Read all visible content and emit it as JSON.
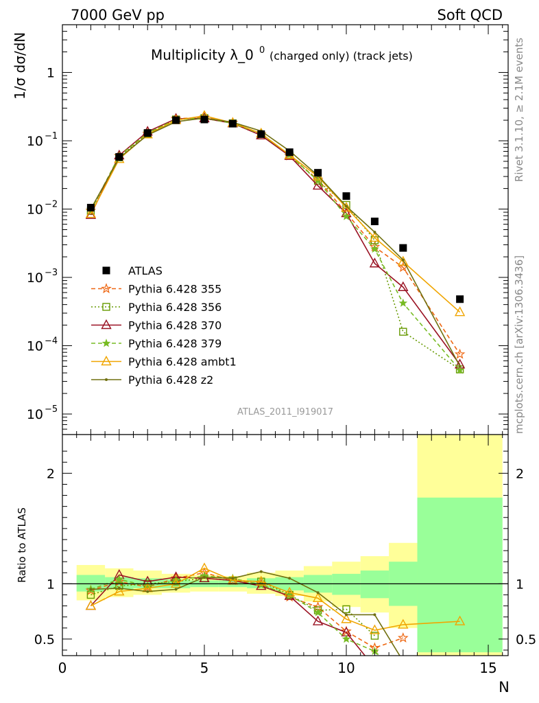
{
  "header": {
    "energy_label": "7000 GeV pp",
    "process_label": "Soft QCD",
    "side_label_rivet": "Rivet 3.1.10, ≥ 2.1M events",
    "side_label_mcplots": "mcplots.cern.ch [arXiv:1306.3436]",
    "watermark": "ATLAS_2011_I919017"
  },
  "chart_data": [
    {
      "type": "scatter",
      "panel": "main",
      "title_main": "Multiplicity λ_0",
      "title_sup": "0",
      "title_suffix": "(charged only) (track jets)",
      "ylabel": "1/σ dσ/dN",
      "yscale": "log",
      "ylim": [
        5e-06,
        5
      ],
      "xlim": [
        0,
        15.7
      ],
      "ytick_labels": [
        "1",
        "10",
        "10",
        "10",
        "10",
        "10"
      ],
      "ytick_exponents": [
        "",
        "−1",
        "−2",
        "−3",
        "−4",
        "−5"
      ],
      "x": [
        1,
        2,
        3,
        4,
        5,
        6,
        7,
        8,
        9,
        10,
        11,
        12,
        14
      ],
      "series": [
        {
          "name": "ATLAS",
          "color": "#000000",
          "style": "data",
          "values": [
            0.0105,
            0.058,
            0.13,
            0.2,
            0.205,
            0.178,
            0.125,
            0.068,
            0.034,
            0.0155,
            0.0066,
            0.0027,
            0.00048
          ]
        },
        {
          "name": "Pythia 6.428 355",
          "color": "#ee6611",
          "style": "dashed",
          "marker": "star",
          "values": [
            0.0095,
            0.06,
            0.127,
            0.21,
            0.22,
            0.185,
            0.125,
            0.06,
            0.027,
            0.0088,
            0.0028,
            0.0014,
            7.5e-05
          ]
        },
        {
          "name": "Pythia 6.428 356",
          "color": "#669900",
          "style": "dotted",
          "marker": "square",
          "values": [
            0.0094,
            0.057,
            0.127,
            0.205,
            0.215,
            0.18,
            0.12,
            0.061,
            0.026,
            0.0115,
            0.0035,
            0.00016,
            4.5e-05
          ]
        },
        {
          "name": "Pythia 6.428 370",
          "color": "#991122",
          "style": "solid",
          "marker": "triangle",
          "values": [
            0.0082,
            0.061,
            0.136,
            0.21,
            0.213,
            0.18,
            0.12,
            0.06,
            0.022,
            0.0087,
            0.0016,
            0.00072,
            5.3e-05
          ]
        },
        {
          "name": "Pythia 6.428 379",
          "color": "#77bb22",
          "style": "dashed",
          "marker": "star-small",
          "values": [
            0.0095,
            0.06,
            0.13,
            0.205,
            0.215,
            0.18,
            0.125,
            0.062,
            0.026,
            0.0078,
            0.0026,
            0.00042,
            4.4e-05
          ]
        },
        {
          "name": "Pythia 6.428 ambt1",
          "color": "#f0a500",
          "style": "solid",
          "marker": "triangle",
          "values": [
            0.0085,
            0.054,
            0.124,
            0.2,
            0.232,
            0.183,
            0.128,
            0.062,
            0.03,
            0.0105,
            0.0038,
            0.0017,
            0.00031
          ]
        },
        {
          "name": "Pythia 6.428 z2",
          "color": "#707010",
          "style": "solid",
          "marker": "dot",
          "values": [
            0.01,
            0.056,
            0.121,
            0.19,
            0.215,
            0.186,
            0.139,
            0.071,
            0.031,
            0.011,
            0.0046,
            0.0018,
            5e-05
          ]
        }
      ]
    },
    {
      "type": "line",
      "panel": "ratio",
      "ylabel": "Ratio to ATLAS",
      "xlabel": "N",
      "ylim": [
        0.35,
        2.35
      ],
      "xlim": [
        0,
        15.7
      ],
      "xtick_labels": [
        "0",
        "5",
        "10",
        "15"
      ],
      "ytick_labels": [
        "0.5",
        "1",
        "2"
      ],
      "bands": {
        "edges": [
          0.5,
          1.5,
          2.5,
          3.5,
          4.5,
          5.5,
          6.5,
          7.5,
          8.5,
          9.5,
          10.5,
          11.5,
          12.5,
          15.5
        ],
        "green": [
          [
            0.93,
            1.08
          ],
          [
            0.95,
            1.06
          ],
          [
            0.96,
            1.05
          ],
          [
            0.96,
            1.04
          ],
          [
            0.97,
            1.03
          ],
          [
            0.97,
            1.03
          ],
          [
            0.96,
            1.05
          ],
          [
            0.94,
            1.06
          ],
          [
            0.92,
            1.08
          ],
          [
            0.9,
            1.09
          ],
          [
            0.87,
            1.12
          ],
          [
            0.8,
            1.2
          ],
          [
            0.38,
            1.78
          ]
        ],
        "yellow": [
          [
            0.85,
            1.17
          ],
          [
            0.88,
            1.14
          ],
          [
            0.9,
            1.12
          ],
          [
            0.92,
            1.09
          ],
          [
            0.93,
            1.08
          ],
          [
            0.93,
            1.07
          ],
          [
            0.91,
            1.1
          ],
          [
            0.89,
            1.12
          ],
          [
            0.84,
            1.16
          ],
          [
            0.79,
            1.2
          ],
          [
            0.74,
            1.25
          ],
          [
            0.6,
            1.37
          ],
          [
            0.0,
            2.6
          ]
        ]
      },
      "series": [
        {
          "name": "Pythia 6.428 355",
          "values": [
            0.94,
            1.02,
            0.97,
            1.05,
            1.1,
            1.03,
            1.0,
            0.88,
            0.79,
            0.57,
            0.42,
            0.51,
            null
          ]
        },
        {
          "name": "Pythia 6.428 356",
          "values": [
            0.9,
            0.98,
            1.0,
            1.02,
            1.05,
            1.03,
            1.02,
            0.9,
            0.76,
            0.77,
            0.53,
            null,
            null
          ]
        },
        {
          "name": "Pythia 6.428 370",
          "values": [
            0.8,
            1.08,
            1.02,
            1.06,
            1.05,
            1.03,
            0.98,
            0.89,
            0.66,
            0.56,
            0.24,
            0.26,
            null
          ]
        },
        {
          "name": "Pythia 6.428 379",
          "values": [
            0.95,
            1.04,
            0.98,
            1.03,
            1.07,
            1.05,
            0.99,
            0.9,
            0.74,
            0.5,
            0.39,
            0.15,
            null
          ]
        },
        {
          "name": "Pythia 6.428 ambt1",
          "values": [
            0.8,
            0.93,
            0.96,
            1.0,
            1.14,
            1.03,
            1.02,
            0.92,
            0.87,
            0.68,
            0.58,
            0.63,
            0.66
          ]
        },
        {
          "name": "Pythia 6.428 z2",
          "values": [
            0.95,
            0.96,
            0.93,
            0.95,
            1.06,
            1.05,
            1.11,
            1.05,
            0.92,
            0.72,
            0.72,
            0.3,
            null
          ]
        }
      ]
    }
  ]
}
